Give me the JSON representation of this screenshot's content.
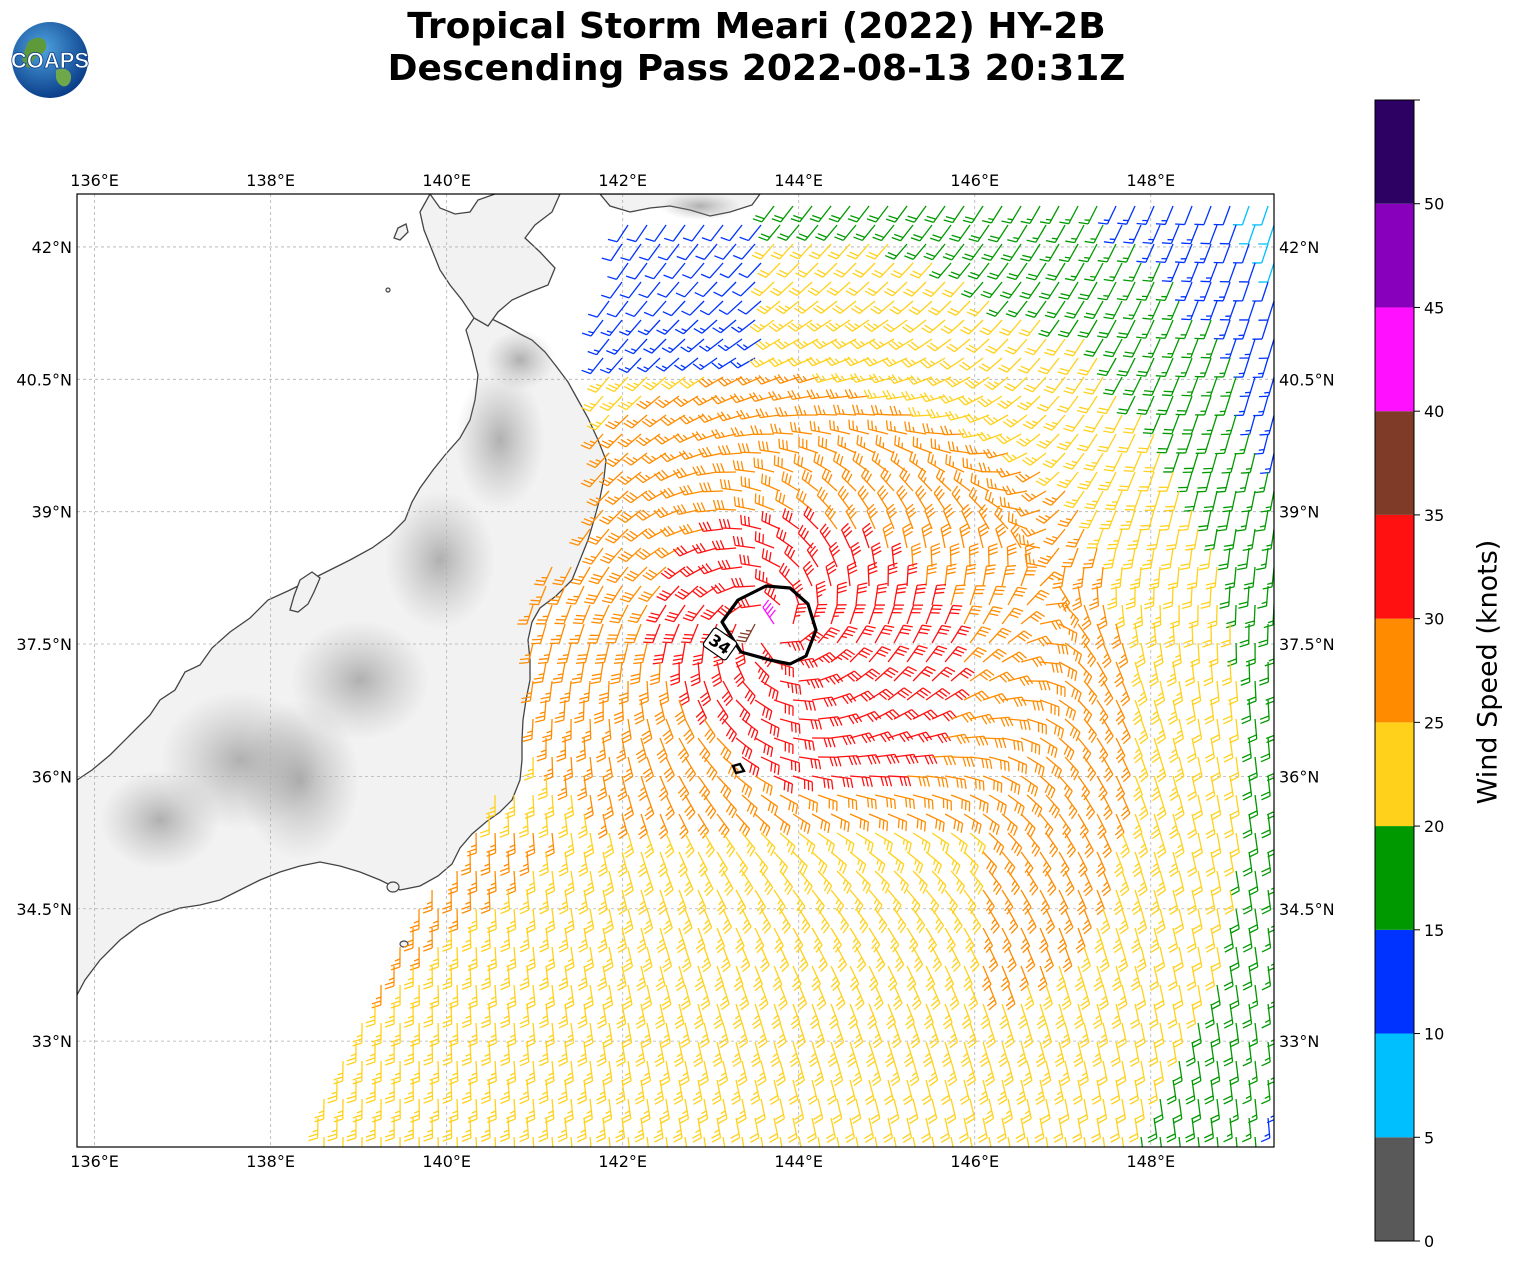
{
  "header": {
    "title_line1": "Tropical Storm Meari (2022) HY-2B",
    "title_line2": "Descending Pass 2022-08-13 20:31Z",
    "logo_text": "COAPS"
  },
  "map": {
    "lon_range": [
      135.8,
      149.4
    ],
    "lat_range": [
      31.8,
      42.6
    ],
    "lon_ticks": [
      "136°E",
      "138°E",
      "140°E",
      "142°E",
      "144°E",
      "146°E",
      "148°E"
    ],
    "lon_tick_values": [
      136,
      138,
      140,
      142,
      144,
      146,
      148
    ],
    "lat_ticks": [
      "42°N",
      "40.5°N",
      "39°N",
      "37.5°N",
      "36°N",
      "34.5°N",
      "33°N"
    ],
    "lat_tick_values": [
      42,
      40.5,
      39,
      37.5,
      36,
      34.5,
      33
    ],
    "contour_label": "34",
    "storm_center": {
      "lon": 143.7,
      "lat": 37.7
    },
    "land_color": "#f2f2f2",
    "coast_color": "#444444",
    "grid": true
  },
  "colorbar": {
    "label": "Wind Speed (knots)",
    "tick_labels": [
      "0",
      "5",
      "10",
      "15",
      "20",
      "25",
      "30",
      "35",
      "40",
      "45",
      "50"
    ],
    "bins": [
      {
        "from": 0,
        "to": 5,
        "color": "#595959"
      },
      {
        "from": 5,
        "to": 10,
        "color": "#00bfff"
      },
      {
        "from": 10,
        "to": 15,
        "color": "#0033ff"
      },
      {
        "from": 15,
        "to": 20,
        "color": "#009900"
      },
      {
        "from": 20,
        "to": 25,
        "color": "#ffd11a"
      },
      {
        "from": 25,
        "to": 30,
        "color": "#ff8c00"
      },
      {
        "from": 30,
        "to": 35,
        "color": "#ff1111"
      },
      {
        "from": 35,
        "to": 40,
        "color": "#7f3a28"
      },
      {
        "from": 40,
        "to": 45,
        "color": "#ff11ff"
      },
      {
        "from": 45,
        "to": 50,
        "color": "#8800bb"
      },
      {
        "from": 50,
        "to": 55,
        "color": "#2d0063"
      }
    ]
  }
}
